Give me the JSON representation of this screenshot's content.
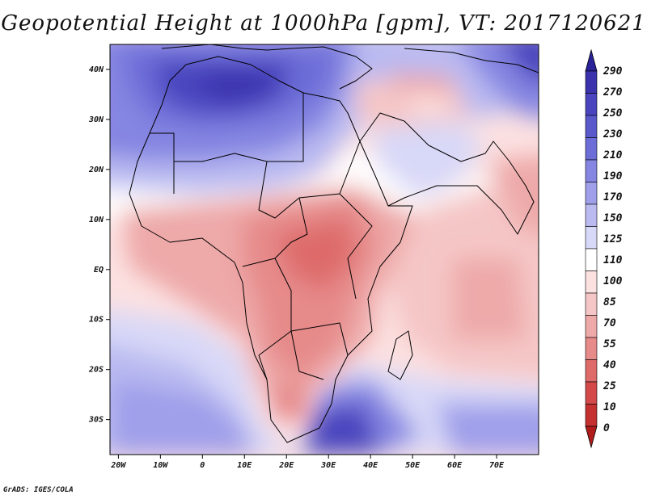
{
  "title": "Geopotential Height at 1000hPa [gpm], VT: 2017120621",
  "credit": "GrADS: IGES/COLA",
  "map": {
    "lat_ticks": [
      {
        "label": "40N",
        "lat": 40
      },
      {
        "label": "30N",
        "lat": 30
      },
      {
        "label": "20N",
        "lat": 20
      },
      {
        "label": "10N",
        "lat": 10
      },
      {
        "label": "EQ",
        "lat": 0
      },
      {
        "label": "10S",
        "lat": -10
      },
      {
        "label": "20S",
        "lat": -20
      },
      {
        "label": "30S",
        "lat": -30
      }
    ],
    "lon_ticks": [
      {
        "label": "20W",
        "lon": -20
      },
      {
        "label": "10W",
        "lon": -10
      },
      {
        "label": "0",
        "lon": 0
      },
      {
        "label": "10E",
        "lon": 10
      },
      {
        "label": "20E",
        "lon": 20
      },
      {
        "label": "30E",
        "lon": 30
      },
      {
        "label": "40E",
        "lon": 40
      },
      {
        "label": "50E",
        "lon": 50
      },
      {
        "label": "60E",
        "lon": 60
      },
      {
        "label": "70E",
        "lon": 70
      }
    ],
    "lon_range": [
      -22,
      80
    ],
    "lat_range": [
      -37,
      45
    ]
  },
  "colorbar": {
    "levels": [
      "290",
      "270",
      "250",
      "230",
      "210",
      "190",
      "170",
      "150",
      "125",
      "110",
      "100",
      "85",
      "70",
      "55",
      "40",
      "25",
      "10",
      "0"
    ],
    "colors": [
      "#2a2298",
      "#3a33ad",
      "#4a45be",
      "#5a59cc",
      "#6d6dd8",
      "#8585e2",
      "#9f9fea",
      "#babaf1",
      "#d8d8f8",
      "#ffffff",
      "#fce1e1",
      "#f5c6c6",
      "#eea9a9",
      "#e68a8a",
      "#de6a6a",
      "#d44a4a",
      "#c53030",
      "#b01c1c"
    ]
  }
}
